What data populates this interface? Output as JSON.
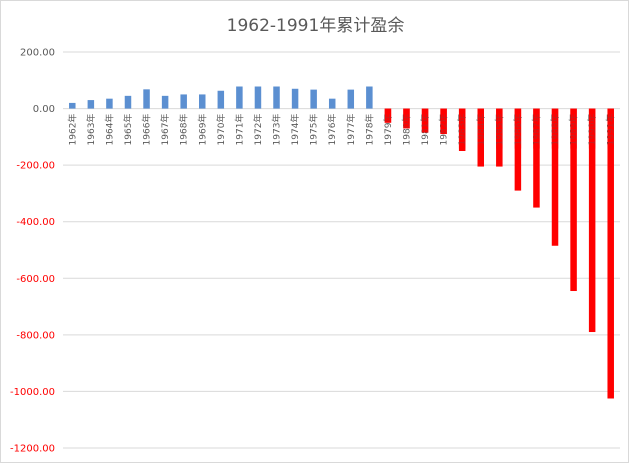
{
  "chart_data": {
    "type": "bar",
    "title": "1962-1991年累计盈余",
    "xlabel": "",
    "ylabel": "",
    "categories": [
      "1962年",
      "1963年",
      "1964年",
      "1965年",
      "1966年",
      "1967年",
      "1968年",
      "1969年",
      "1970年",
      "1971年",
      "1972年",
      "1973年",
      "1974年",
      "1975年",
      "1976年",
      "1977年",
      "1978年",
      "1979年",
      "1980年",
      "1981年",
      "1982年",
      "1983年",
      "1984年",
      "1985年",
      "1986年",
      "1987年",
      "1988年",
      "1989年",
      "1990年",
      "1991年"
    ],
    "values": [
      20,
      30,
      35,
      45,
      68,
      45,
      50,
      50,
      63,
      78,
      78,
      78,
      70,
      67,
      35,
      67,
      78,
      -50,
      -70,
      -85,
      -90,
      -150,
      -205,
      -205,
      -290,
      -350,
      -485,
      -645,
      -790,
      -1025
    ],
    "ylim": [
      -1200,
      200
    ],
    "yticks": [
      200,
      0,
      -200,
      -400,
      -600,
      -800,
      -1000,
      -1200
    ],
    "ytick_labels": [
      "200.00",
      "0.00",
      "-200.00",
      "-400.00",
      "-600.00",
      "-800.00",
      "-1000.00",
      "-1200.00"
    ],
    "positive_color": "#5b8fd1",
    "negative_color": "#ff0000",
    "positive_tick_color": "#595959",
    "negative_tick_color": "#ff0000",
    "gridline_color": "#d9d9d9",
    "grid": true,
    "legend": "none"
  }
}
